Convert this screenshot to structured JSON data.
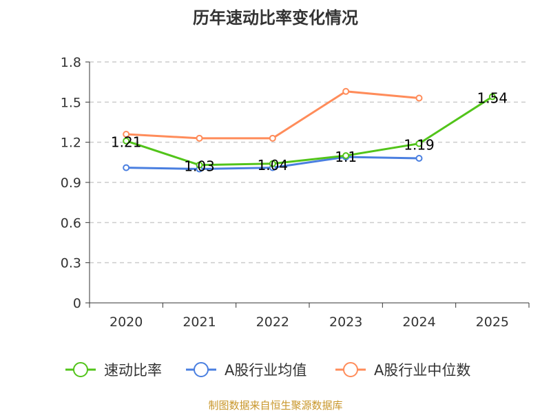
{
  "chart_data": {
    "type": "line",
    "title": "历年速动比率变化情况",
    "categories": [
      "2020",
      "2021",
      "2022",
      "2023",
      "2024",
      "2025"
    ],
    "ylim": [
      0,
      1.8
    ],
    "yticks": [
      "0",
      "0.3",
      "0.6",
      "0.9",
      "1.2",
      "1.5",
      "1.8"
    ],
    "grid": true,
    "legend_position": "bottom",
    "series": [
      {
        "name": "速动比率",
        "color": "#52c41a",
        "values": [
          1.21,
          1.03,
          1.04,
          1.1,
          1.19,
          1.54
        ],
        "labels": [
          "1.21",
          "1.03",
          "1.04",
          "1.1",
          "1.19",
          "1.54"
        ]
      },
      {
        "name": "A股行业均值",
        "color": "#4a7fe0",
        "values": [
          1.01,
          1.0,
          1.01,
          1.09,
          1.08,
          null
        ]
      },
      {
        "name": "A股行业中位数",
        "color": "#ff8c5a",
        "values": [
          1.26,
          1.23,
          1.23,
          1.58,
          1.53,
          null
        ]
      }
    ]
  },
  "footer": "制图数据来自恒生聚源数据库"
}
